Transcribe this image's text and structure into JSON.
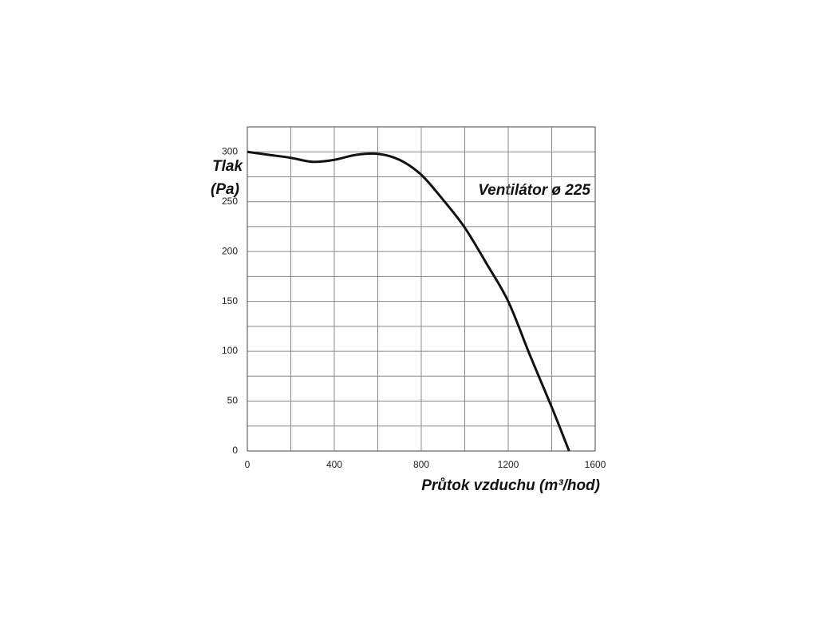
{
  "chart_data": {
    "type": "line",
    "ylabel": [
      "Tlak",
      "(Pa)"
    ],
    "xlabel": "Průtok vzduchu (m³/hod)",
    "annotation": "Ventilátor ø 225",
    "xlim": [
      0,
      1600
    ],
    "ylim": [
      0,
      325
    ],
    "xticks": [
      0,
      400,
      800,
      1200,
      1600
    ],
    "yticks": [
      0,
      50,
      100,
      150,
      200,
      250,
      300
    ],
    "xminorticks": [
      200,
      600,
      1000,
      1400
    ],
    "yminorticks": [
      25,
      75,
      125,
      175,
      225,
      275,
      325
    ],
    "grid": true,
    "series": [
      {
        "color": "#111111",
        "x": [
          0,
          100,
          200,
          300,
          400,
          500,
          600,
          700,
          800,
          900,
          1000,
          1100,
          1200,
          1300,
          1400,
          1480
        ],
        "values": [
          300,
          297,
          294,
          290,
          292,
          297,
          298,
          292,
          277,
          252,
          224,
          188,
          150,
          96,
          44,
          0
        ]
      }
    ]
  }
}
